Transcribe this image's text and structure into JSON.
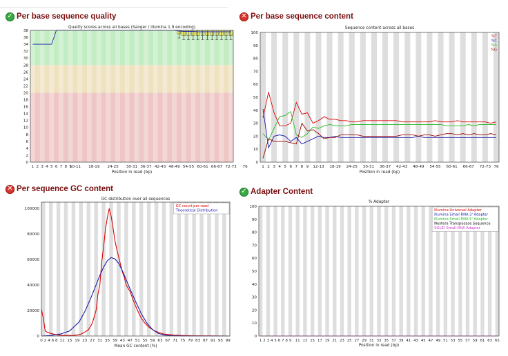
{
  "panels": {
    "pbsq": {
      "title": "Per base sequence quality",
      "status": "pass"
    },
    "pbsc": {
      "title": "Per base sequence content",
      "status": "fail"
    },
    "gc": {
      "title": "Per sequence GC content",
      "status": "fail"
    },
    "adapter": {
      "title": "Adapter Content",
      "status": "pass"
    }
  },
  "status_icons": {
    "pass": "check-icon",
    "fail": "cross-icon"
  },
  "colors": {
    "zone_good": "#c2ecc2",
    "zone_warn": "#efe2c0",
    "zone_bad": "#efc6c6",
    "stripe": "#dedede",
    "red": "#dd0000",
    "blue": "#1a1aa8",
    "green": "#22bb22",
    "black": "#111111",
    "magenta": "#cc33cc"
  },
  "chart_data": [
    {
      "id": "pbsq",
      "type": "box",
      "title": "Quality scores across all bases (Sanger / Illumina 1.9 encoding)",
      "xlabel": "Position in read (bp)",
      "ylabel": "",
      "ylim": [
        0,
        38
      ],
      "yticks": [
        0,
        2,
        4,
        6,
        8,
        10,
        12,
        14,
        16,
        18,
        20,
        22,
        24,
        26,
        28,
        30,
        32,
        34,
        36,
        38
      ],
      "categories": [
        "1",
        "2",
        "3",
        "4",
        "5",
        "6",
        "7",
        "8",
        "9",
        "10-11",
        "12-13",
        "14-15",
        "16-17",
        "18-19",
        "20-21",
        "22-23",
        "24-25",
        "26-27",
        "28-29",
        "30-31",
        "32-33",
        "34-35",
        "36-37",
        "38-39",
        "40-41",
        "42-43",
        "44-45",
        "46-47",
        "48-49",
        "50-51",
        "52-53",
        "54-55",
        "56-57",
        "58-59",
        "60-61",
        "62-63",
        "64-65",
        "66-67",
        "68-69",
        "70-71",
        "72-73",
        "74-75",
        "76"
      ],
      "xtick_labels": [
        "1",
        "2",
        "3",
        "4",
        "5",
        "6",
        "7",
        "8",
        "9",
        "10-11",
        "",
        "",
        "",
        "18-19",
        "",
        "",
        "",
        "24-25",
        "",
        "",
        "",
        "30-31",
        "",
        "",
        "36-37",
        "",
        "",
        "42-43",
        "",
        "",
        "48-49",
        "",
        "",
        "54-55",
        "",
        "",
        "60-61",
        "",
        "",
        "66-67",
        "",
        "",
        "72-73",
        "",
        "",
        "76"
      ],
      "zones": [
        {
          "from": 0,
          "to": 20,
          "kind": "bad"
        },
        {
          "from": 20,
          "to": 28,
          "kind": "warn"
        },
        {
          "from": 28,
          "to": 38,
          "kind": "good"
        }
      ],
      "mean": [
        34,
        34,
        34,
        34,
        34,
        38,
        38,
        38,
        38,
        38,
        38,
        38,
        38,
        38,
        38,
        38,
        38,
        38,
        38,
        38,
        38,
        38,
        38,
        38,
        38,
        38,
        38,
        38,
        38,
        38,
        38,
        37.8,
        37.7,
        37.7,
        37.7,
        37.6,
        37.6,
        37.6,
        37.6,
        37.6,
        37.6,
        37.6,
        37.6
      ],
      "box_low": [
        null,
        null,
        null,
        null,
        null,
        null,
        null,
        null,
        null,
        null,
        null,
        null,
        null,
        null,
        null,
        null,
        null,
        null,
        null,
        null,
        null,
        null,
        null,
        null,
        null,
        null,
        null,
        null,
        null,
        null,
        null,
        37,
        36.5,
        36.5,
        36.5,
        36.5,
        36.5,
        36.5,
        36.5,
        36.5,
        36.5,
        36.5,
        36.5
      ],
      "box_high": [
        null,
        null,
        null,
        null,
        null,
        null,
        null,
        null,
        null,
        null,
        null,
        null,
        null,
        null,
        null,
        null,
        null,
        null,
        null,
        null,
        null,
        null,
        null,
        null,
        null,
        null,
        null,
        null,
        null,
        null,
        null,
        38,
        38,
        38,
        38,
        38,
        38,
        38,
        38,
        38,
        38,
        38,
        38
      ]
    },
    {
      "id": "pbsc",
      "type": "line",
      "title": "Sequence content across all bases",
      "xlabel": "Position in read (bp)",
      "ylim": [
        0,
        100
      ],
      "yticks": [
        0,
        10,
        20,
        30,
        40,
        50,
        60,
        70,
        80,
        90,
        100
      ],
      "legend_position": "top-right",
      "categories": [
        "1",
        "2",
        "3",
        "4",
        "5",
        "6",
        "7",
        "8",
        "9",
        "10-11",
        "12-13",
        "14-15",
        "16-17",
        "18-19",
        "20-21",
        "22-23",
        "24-25",
        "26-27",
        "28-29",
        "30-31",
        "32-33",
        "34-35",
        "36-37",
        "38-39",
        "40-41",
        "42-43",
        "44-45",
        "46-47",
        "48-49",
        "50-51",
        "52-53",
        "54-55",
        "56-57",
        "58-59",
        "60-61",
        "62-63",
        "64-65",
        "66-67",
        "68-69",
        "70-71",
        "72-73",
        "74-75",
        "76"
      ],
      "xtick_labels": [
        "1",
        "2",
        "3",
        "4",
        "5",
        "6",
        "7",
        "8",
        "9",
        "",
        "12-13",
        "",
        "",
        "18-19",
        "",
        "",
        "24-25",
        "",
        "",
        "30-31",
        "",
        "",
        "36-37",
        "",
        "",
        "42-43",
        "",
        "",
        "48-49",
        "",
        "",
        "54-55",
        "",
        "",
        "60-61",
        "",
        "",
        "66-67",
        "",
        "",
        "72-73",
        "",
        "76"
      ],
      "series": [
        {
          "name": "%T",
          "color": "#dd0000",
          "values": [
            34,
            54,
            38,
            28,
            28,
            30,
            46,
            37,
            38,
            30,
            32,
            35,
            33,
            33,
            32,
            32,
            31,
            31,
            32,
            32,
            32,
            32,
            32,
            32,
            32,
            31,
            31,
            31,
            31,
            31,
            31,
            32,
            31,
            31,
            31,
            32,
            31,
            31,
            31,
            31,
            31,
            30,
            31
          ]
        },
        {
          "name": "%C",
          "color": "#1a1aa8",
          "values": [
            41,
            11,
            20,
            21,
            20,
            16,
            19,
            14,
            16,
            18,
            20,
            19,
            19,
            20,
            19,
            19,
            19,
            19,
            19,
            19,
            19,
            19,
            19,
            19,
            19,
            19,
            19,
            19,
            20,
            19,
            19,
            19,
            19,
            19,
            19,
            19,
            19,
            19,
            19,
            19,
            19,
            19,
            19
          ]
        },
        {
          "name": "%A",
          "color": "#22bb22",
          "values": [
            22,
            17,
            26,
            35,
            36,
            39,
            21,
            19,
            22,
            27,
            26,
            28,
            29,
            28,
            28,
            28,
            29,
            29,
            29,
            29,
            29,
            29,
            29,
            29,
            29,
            29,
            29,
            29,
            29,
            29,
            29,
            29,
            29,
            28,
            28,
            28,
            28,
            29,
            28,
            29,
            29,
            29,
            29
          ]
        },
        {
          "name": "%G",
          "color": "#990000",
          "values": [
            3,
            18,
            16,
            16,
            16,
            15,
            14,
            30,
            24,
            25,
            22,
            18,
            19,
            19,
            21,
            21,
            21,
            21,
            20,
            20,
            20,
            20,
            20,
            20,
            20,
            21,
            21,
            21,
            20,
            21,
            21,
            20,
            21,
            22,
            22,
            21,
            22,
            21,
            22,
            21,
            21,
            22,
            21
          ]
        }
      ]
    },
    {
      "id": "gc",
      "type": "line",
      "title": "GC distribution over all sequences",
      "xlabel": "Mean GC content (%)",
      "ylim": [
        0,
        105000
      ],
      "yticks": [
        0,
        20000,
        40000,
        60000,
        80000,
        100000
      ],
      "xlim": [
        0,
        100
      ],
      "xticks": [
        0,
        2,
        4,
        6,
        8,
        11,
        15,
        19,
        23,
        27,
        31,
        35,
        39,
        43,
        47,
        51,
        55,
        59,
        63,
        67,
        71,
        75,
        79,
        83,
        87,
        91,
        95,
        99
      ],
      "legend_position": "top-right",
      "series": [
        {
          "name": "GC count per read",
          "color": "#dd0000",
          "x": [
            0,
            1,
            2,
            3,
            5,
            8,
            11,
            14,
            17,
            19,
            21,
            23,
            25,
            27,
            29,
            30,
            31,
            32,
            33,
            34,
            35,
            36,
            37,
            38,
            39,
            40,
            41,
            42,
            43,
            44,
            45,
            47,
            49,
            51,
            53,
            55,
            57,
            60,
            65,
            70,
            75,
            80,
            90,
            100
          ],
          "y": [
            21000,
            14000,
            4000,
            3000,
            2000,
            900,
            500,
            400,
            500,
            800,
            1500,
            3000,
            5000,
            10000,
            20000,
            33000,
            40000,
            58000,
            70000,
            84000,
            93000,
            100000,
            94000,
            85000,
            75000,
            68000,
            62000,
            56000,
            50000,
            46000,
            40000,
            35000,
            27000,
            20000,
            14000,
            10000,
            7000,
            4000,
            1500,
            700,
            400,
            200,
            100,
            0
          ]
        },
        {
          "name": "Theoretical Distribution",
          "color": "#1a1aa8",
          "x": [
            0,
            5,
            10,
            15,
            20,
            23,
            26,
            29,
            31,
            33,
            35,
            37,
            39,
            41,
            43,
            45,
            47,
            50,
            53,
            56,
            59,
            62,
            65,
            70,
            75,
            80,
            90,
            100
          ],
          "y": [
            0,
            400,
            1500,
            4000,
            11000,
            19000,
            29000,
            40000,
            47500,
            54000,
            59000,
            61500,
            60500,
            57000,
            51000,
            44000,
            37000,
            27000,
            17500,
            10000,
            5000,
            2000,
            800,
            200,
            50,
            0,
            0,
            0
          ]
        }
      ]
    },
    {
      "id": "adapter",
      "type": "line",
      "title": "% Adapter",
      "xlabel": "Position in read (bp)",
      "ylim": [
        0,
        100
      ],
      "yticks": [
        0,
        10,
        20,
        30,
        40,
        50,
        60,
        70,
        80,
        90,
        100
      ],
      "legend_position": "top-right",
      "categories": [
        "1",
        "2",
        "3",
        "4",
        "5",
        "6",
        "7",
        "8",
        "9",
        "10",
        "11",
        "12",
        "13",
        "14",
        "15",
        "16",
        "17",
        "18",
        "19",
        "20",
        "21",
        "22",
        "23",
        "24",
        "25",
        "26",
        "27",
        "28",
        "29",
        "30",
        "31",
        "32",
        "33",
        "34",
        "35",
        "36",
        "37",
        "38",
        "39",
        "40",
        "41",
        "42",
        "43",
        "44",
        "45",
        "46",
        "47",
        "48",
        "49",
        "50",
        "51",
        "52",
        "53",
        "54",
        "55",
        "56",
        "57",
        "58",
        "59",
        "60",
        "61",
        "62",
        "63",
        "64",
        "65"
      ],
      "xtick_labels": [
        "1",
        "2",
        "3",
        "4",
        "5",
        "6",
        "7",
        "8",
        "9",
        "",
        "11",
        "",
        "13",
        "",
        "15",
        "",
        "17",
        "",
        "19",
        "",
        "21",
        "",
        "23",
        "",
        "25",
        "",
        "27",
        "",
        "29",
        "",
        "31",
        "",
        "33",
        "",
        "35",
        "",
        "37",
        "",
        "39",
        "",
        "41",
        "",
        "43",
        "",
        "45",
        "",
        "47",
        "",
        "49",
        "",
        "51",
        "",
        "53",
        "",
        "55",
        "",
        "57",
        "",
        "59",
        "",
        "61",
        "",
        "63",
        "",
        "65"
      ],
      "series": [
        {
          "name": "Illumina Universal Adapter",
          "color": "#dd0000",
          "constant": 0
        },
        {
          "name": "Illumina Small RNA 3' Adapter",
          "color": "#1a1aa8",
          "constant": 0
        },
        {
          "name": "Illumina Small RNA 5' Adapter",
          "color": "#22bb22",
          "constant": 0
        },
        {
          "name": "Nextera Transposase Sequence",
          "color": "#111111",
          "constant": 0
        },
        {
          "name": "SOLID Small RNA Adapter",
          "color": "#cc33cc",
          "constant": 0
        }
      ]
    }
  ]
}
